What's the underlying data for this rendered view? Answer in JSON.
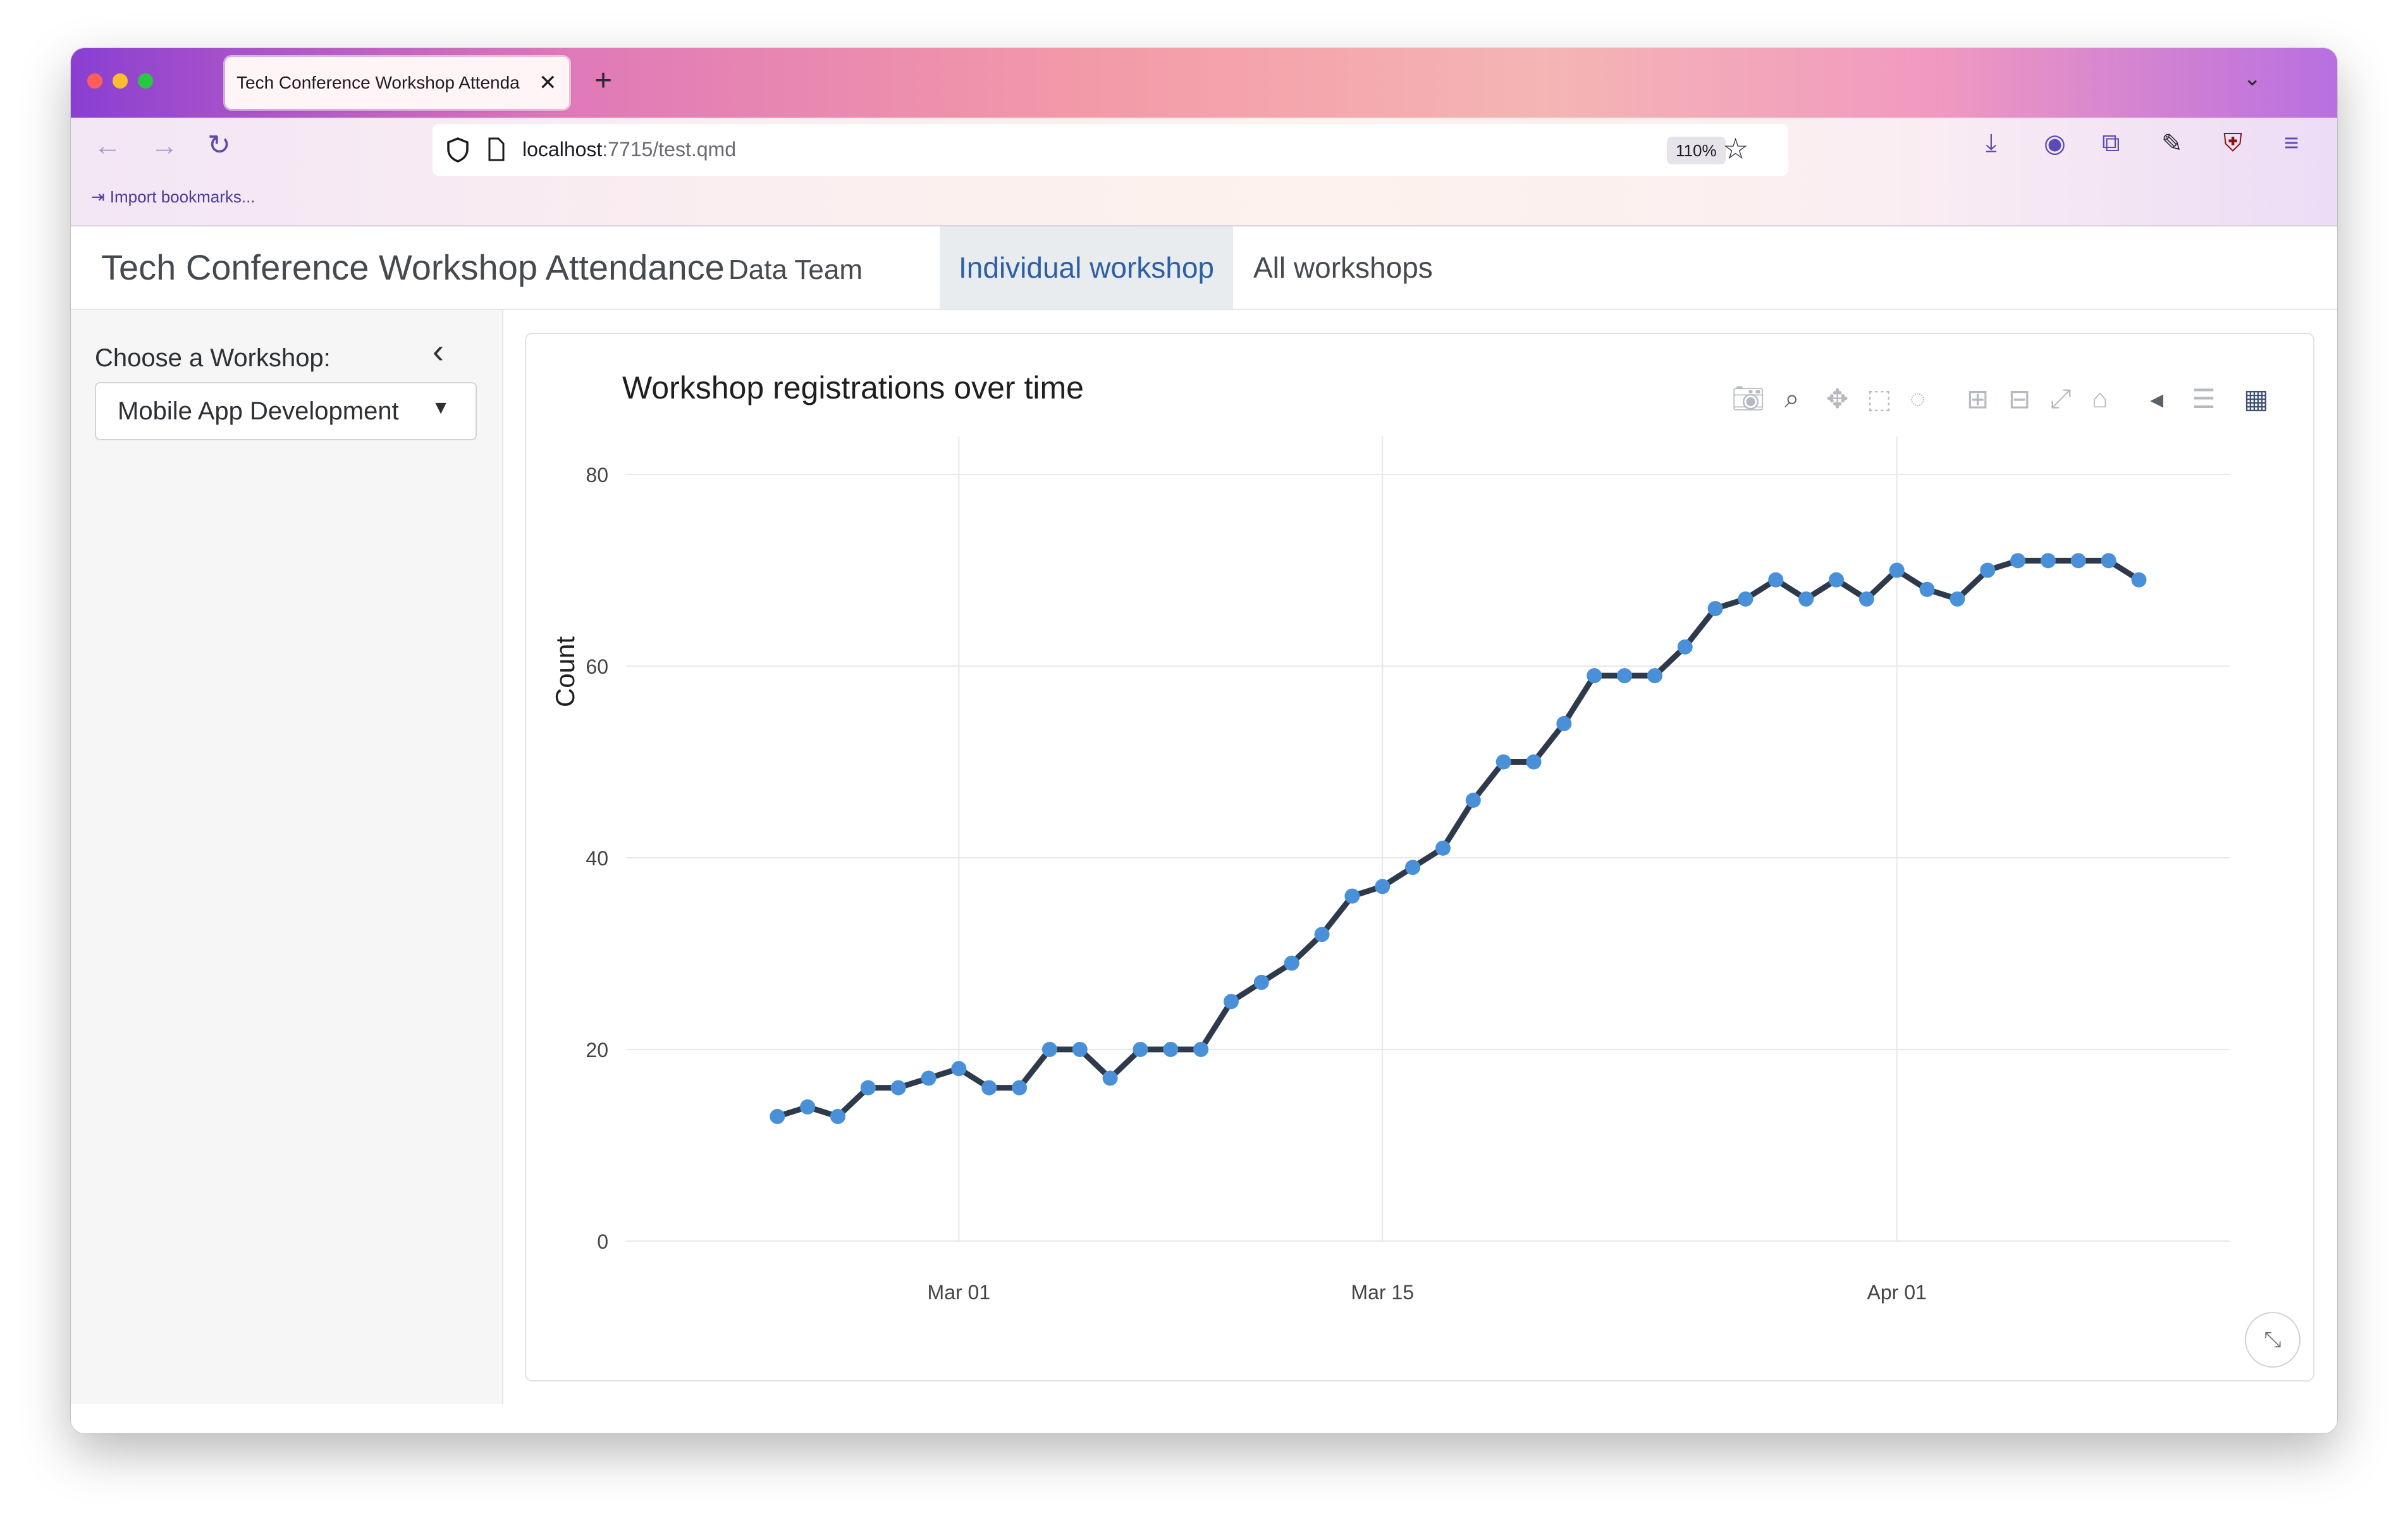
{
  "browser": {
    "tab_title": "Tech Conference Workshop Attenda",
    "tab_close": "✕",
    "new_tab": "+",
    "url_host": "localhost",
    "url_rest": ":7715/test.qmd",
    "zoom": "110%",
    "bookmark_label": "Import bookmarks..."
  },
  "header": {
    "title": "Tech Conference Workshop Attendance",
    "subtitle": "Data Team",
    "tabs": [
      {
        "label": "Individual workshop",
        "active": true
      },
      {
        "label": "All workshops",
        "active": false
      }
    ]
  },
  "sidebar": {
    "label": "Choose a Workshop:",
    "selected": "Mobile App Development",
    "collapse_icon": "‹"
  },
  "chart": {
    "title": "Workshop registrations over time",
    "ylabel": "Count",
    "expand_icon": "⤡"
  },
  "chart_data": {
    "type": "line",
    "title": "Workshop registrations over time",
    "xlabel": "",
    "ylabel": "Count",
    "ylim": [
      0,
      80
    ],
    "yticks": [
      0,
      20,
      40,
      60,
      80
    ],
    "xlim": [
      "2024-02-19",
      "2024-04-12"
    ],
    "xticks": [
      {
        "date": "2024-03-01",
        "label": "Mar 01"
      },
      {
        "date": "2024-03-15",
        "label": "Mar 15"
      },
      {
        "date": "2024-04-01",
        "label": "Apr 01"
      }
    ],
    "grid": true,
    "line_color": "#2e3a4b",
    "marker_color": "#4a90d9",
    "x": [
      "2024-02-24",
      "2024-02-25",
      "2024-02-26",
      "2024-02-27",
      "2024-02-28",
      "2024-02-29",
      "2024-03-01",
      "2024-03-02",
      "2024-03-03",
      "2024-03-04",
      "2024-03-05",
      "2024-03-06",
      "2024-03-07",
      "2024-03-08",
      "2024-03-09",
      "2024-03-10",
      "2024-03-11",
      "2024-03-12",
      "2024-03-13",
      "2024-03-14",
      "2024-03-15",
      "2024-03-16",
      "2024-03-17",
      "2024-03-18",
      "2024-03-19",
      "2024-03-20",
      "2024-03-21",
      "2024-03-22",
      "2024-03-23",
      "2024-03-24",
      "2024-03-25",
      "2024-03-26",
      "2024-03-27",
      "2024-03-28",
      "2024-03-29",
      "2024-03-30",
      "2024-03-31",
      "2024-04-01",
      "2024-04-02",
      "2024-04-03",
      "2024-04-04",
      "2024-04-05",
      "2024-04-06",
      "2024-04-07",
      "2024-04-08",
      "2024-04-09"
    ],
    "y": [
      13,
      14,
      13,
      16,
      16,
      17,
      18,
      16,
      16,
      20,
      20,
      17,
      20,
      20,
      20,
      25,
      27,
      29,
      32,
      36,
      37,
      39,
      41,
      46,
      50,
      50,
      54,
      59,
      59,
      59,
      62,
      66,
      67,
      69,
      67,
      69,
      67,
      70,
      68,
      67,
      70,
      71,
      71,
      71,
      71,
      69
    ]
  }
}
